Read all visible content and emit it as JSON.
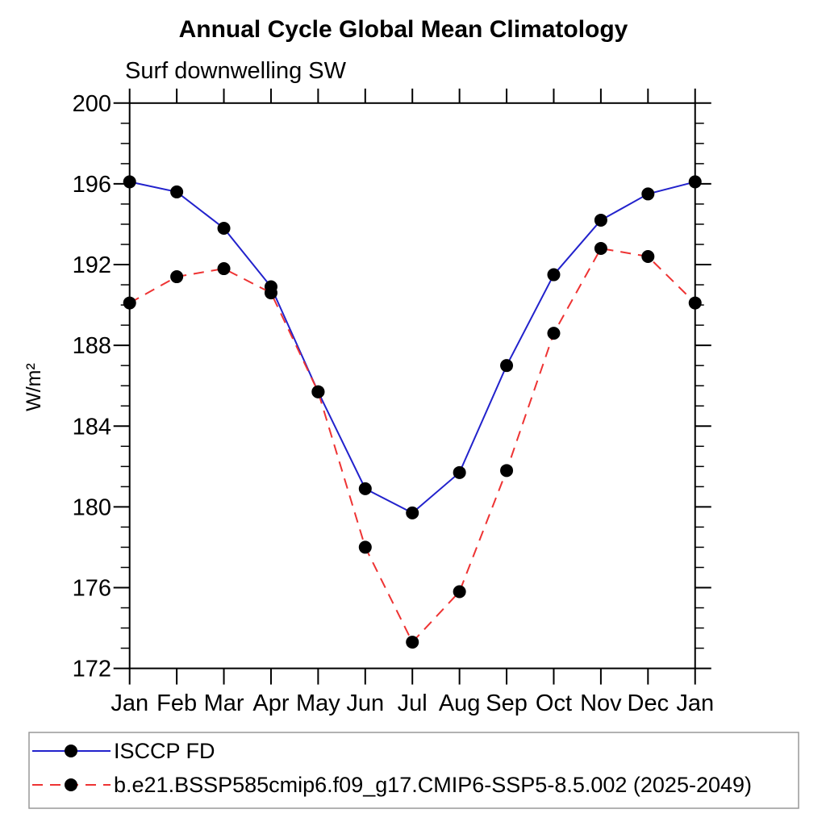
{
  "title": "Annual Cycle Global Mean Climatology",
  "subtitle": "Surf downwelling SW",
  "chart_data": {
    "type": "line",
    "categories": [
      "Jan",
      "Feb",
      "Mar",
      "Apr",
      "May",
      "Jun",
      "Jul",
      "Aug",
      "Sep",
      "Oct",
      "Nov",
      "Dec",
      "Jan"
    ],
    "xlabel": "",
    "ylabel": "W/m²",
    "ylim": [
      172,
      200
    ],
    "ytick_major_step": 4,
    "ytick_minor_step": 1,
    "grid": false,
    "legend_position": "bottom-left",
    "series": [
      {
        "name": "ISCCP FD",
        "line_style": "solid",
        "line_color": "#2222cc",
        "marker": "filled-circle",
        "marker_color": "#000000",
        "values": [
          196.1,
          195.6,
          193.8,
          190.9,
          185.7,
          180.9,
          179.7,
          181.7,
          187.0,
          191.5,
          194.2,
          195.5,
          196.1
        ]
      },
      {
        "name": "b.e21.BSSP585cmip6.f09_g17.CMIP6-SSP5-8.5.002 (2025-2049)",
        "line_style": "dashed",
        "line_color": "#ee3333",
        "marker": "filled-circle",
        "marker_color": "#000000",
        "values": [
          190.1,
          191.4,
          191.8,
          190.6,
          185.7,
          178.0,
          173.3,
          175.8,
          181.8,
          188.6,
          192.8,
          192.4,
          190.1
        ]
      }
    ],
    "axis_color": "#000000",
    "legend_border_color": "#999999"
  }
}
